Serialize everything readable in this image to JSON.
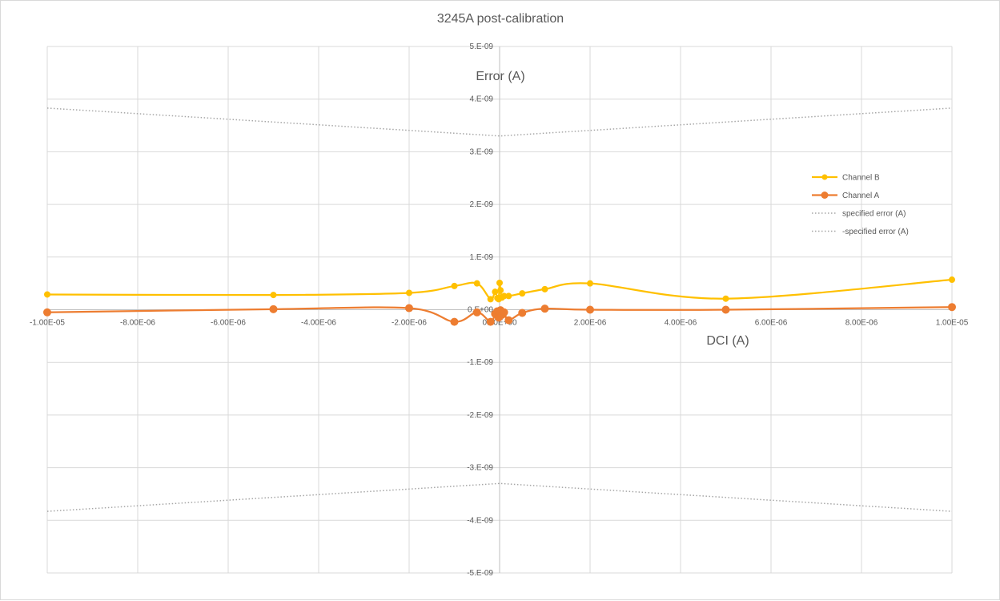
{
  "chart_data": {
    "type": "scatter",
    "title": "3245A post-calibration",
    "xlabel": "DCI (A)",
    "ylabel": "Error (A)",
    "xlim": [
      -1e-05,
      1e-05
    ],
    "ylim": [
      -5e-09,
      5e-09
    ],
    "x_ticks": [
      -1e-05,
      -8e-06,
      -6e-06,
      -4e-06,
      -2e-06,
      0,
      2e-06,
      4e-06,
      6e-06,
      8e-06,
      1e-05
    ],
    "x_tick_labels": [
      "-1.00E-05",
      "-8.00E-06",
      "-6.00E-06",
      "-4.00E-06",
      "-2.00E-06",
      "0.00E+00",
      "2.00E-06",
      "4.00E-06",
      "6.00E-06",
      "8.00E-06",
      "1.00E-05"
    ],
    "y_ticks": [
      5e-09,
      4e-09,
      3e-09,
      2e-09,
      1e-09,
      0,
      -1e-09,
      -2e-09,
      -3e-09,
      -4e-09,
      -5e-09
    ],
    "y_tick_labels": [
      "5.E-09",
      "4.E-09",
      "3.E-09",
      "2.E-09",
      "1.E-09",
      "0.E+00",
      "-1.E-09",
      "-2.E-09",
      "-3.E-09",
      "-4.E-09",
      "-5.E-09"
    ],
    "grid": true,
    "legend_position": "right",
    "series": [
      {
        "name": "Channel B",
        "color": "#ffc000",
        "style": "smooth-line-with-markers",
        "x": [
          -1e-05,
          -5e-06,
          -2e-06,
          -1e-06,
          -5e-07,
          -2e-07,
          -1e-07,
          -5e-08,
          -2e-08,
          0,
          2e-08,
          5e-08,
          1e-07,
          2e-07,
          5e-07,
          1e-06,
          2e-06,
          5e-06,
          1e-05
        ],
        "y": [
          2.9e-10,
          2.8e-10,
          3.2e-10,
          4.5e-10,
          5e-10,
          2e-10,
          3.4e-10,
          2.2e-10,
          2e-10,
          5.1e-10,
          3.7e-10,
          2.3e-10,
          2.6e-10,
          2.6e-10,
          3.1e-10,
          3.9e-10,
          5e-10,
          2.1e-10,
          5.7e-10
        ]
      },
      {
        "name": "Channel A",
        "color": "#ed7d31",
        "style": "smooth-line-with-markers",
        "x": [
          -1e-05,
          -5e-06,
          -2e-06,
          -1e-06,
          -5e-07,
          -2e-07,
          -1e-07,
          -5e-08,
          -2e-08,
          0,
          2e-08,
          5e-08,
          1e-07,
          2e-07,
          5e-07,
          1e-06,
          2e-06,
          5e-06,
          1e-05
        ],
        "y": [
          -5e-11,
          1e-11,
          3e-11,
          -2.3e-10,
          -5e-11,
          -2.3e-10,
          -8e-11,
          -3e-11,
          -1.5e-10,
          -5e-11,
          -1e-11,
          -1e-10,
          -5e-11,
          -2e-10,
          -6e-11,
          2e-11,
          0,
          0,
          5e-11
        ]
      },
      {
        "name": "specified error (A)",
        "color": "#a6a6a6",
        "style": "dotted-line",
        "x": [
          -1e-05,
          0,
          1e-05
        ],
        "y": [
          3.83e-09,
          3.3e-09,
          3.83e-09
        ]
      },
      {
        "name": "-specified error (A)",
        "color": "#a6a6a6",
        "style": "dotted-line",
        "x": [
          -1e-05,
          0,
          1e-05
        ],
        "y": [
          -3.83e-09,
          -3.3e-09,
          -3.83e-09
        ]
      }
    ]
  }
}
